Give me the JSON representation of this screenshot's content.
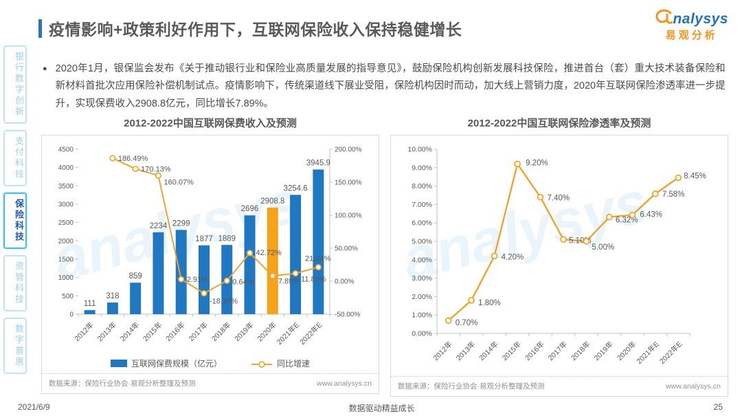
{
  "page": {
    "title": "疫情影响+政策利好作用下，互联网保险收入保持稳健增长",
    "bullet_text": "2020年1月，银保监会发布《关于推动银行业和保险业高质量发展的指导意见》，鼓励保险机构创新发展科技保险，推进首台（套）重大技术装备保险和新材料首批次应用保险补偿机制试点。疫情影响下，传统渠道线下展业受阻，保险机构因时而动，加大线上营销力度，2020年互联网保险渗透率进一步提升，实现保费收入2908.8亿元，同比增长7.89%。",
    "footer": {
      "date": "2021/6/9",
      "slogan": "数据驱动精益成长",
      "page_number": "25"
    }
  },
  "logo": {
    "word": "nalysys",
    "cn": "易观分析",
    "watermark": "analysys"
  },
  "sidebar": {
    "items": [
      {
        "label": "银行数字创新",
        "active": false
      },
      {
        "label": "支付科技",
        "active": false
      },
      {
        "label": "保险科技",
        "active": true
      },
      {
        "label": "资管科技",
        "active": false
      },
      {
        "label": "数字普惠",
        "active": false
      }
    ]
  },
  "colors": {
    "bar_blue": "#1F78C1",
    "highlight_orange": "#F7A21B",
    "line_orange": "#F0A330",
    "accent_blue": "#2E74B5",
    "logo_orange": "#F7941D",
    "logo_blue": "#2372B9"
  },
  "charts": {
    "left": {
      "title": "2012-2022中国互联网保费收入及预测",
      "legend": [
        {
          "label": "互联网保费规模（亿元）",
          "type": "bar"
        },
        {
          "label": "同比增速",
          "type": "line"
        }
      ],
      "source": "数据来源：保险行业协会·易观分析整理及预测",
      "site": "www.analysys.cn"
    },
    "right": {
      "title": "2012-2022中国互联网保险渗透率及预测",
      "source": "数据来源：保险行业协会·易观分析整理及预测",
      "site": "www.analysys.cn"
    }
  },
  "chart_data": [
    {
      "type": "bar",
      "title": "2012-2022中国互联网保费收入及预测",
      "categories": [
        "2012年",
        "2013年",
        "2014年",
        "2015年",
        "2016年",
        "2017年",
        "2018年",
        "2019年",
        "2020年",
        "2021年E",
        "2022年E"
      ],
      "series": [
        {
          "name": "互联网保费规模（亿元）",
          "type": "bar",
          "values": [
            111,
            318,
            859,
            2234,
            2299,
            1877,
            1889,
            2696,
            2908.8,
            3254.6,
            3945.9
          ],
          "labels": [
            "111",
            "318",
            "859",
            "2234",
            "2299",
            "1877",
            "1889",
            "2696",
            "2908.8",
            "3254.6",
            "3945.9"
          ],
          "color": "#1F78C1",
          "highlight_index": 8,
          "highlight_color": "#F7A21B"
        },
        {
          "name": "同比增速",
          "type": "line",
          "values": [
            null,
            186.49,
            170.13,
            160.07,
            2.91,
            -18.36,
            0.64,
            42.72,
            7.89,
            11.89,
            21.24
          ],
          "labels": [
            null,
            "186.49%",
            "170.13%",
            "160.07%",
            "2.91%",
            "-18.36%",
            "0.64%",
            "42.72%",
            "7.89%",
            "11.89%",
            "21.24%"
          ],
          "color": "#F0A330"
        }
      ],
      "y_left": {
        "min": 0,
        "max": 4500,
        "step": 500
      },
      "y_right": {
        "min": -50,
        "max": 200,
        "step": 50,
        "suffix": "%"
      },
      "legend_position": "bottom",
      "grid": false
    },
    {
      "type": "line",
      "title": "2012-2022中国互联网保险渗透率及预测",
      "categories": [
        "2012年",
        "2013年",
        "2014年",
        "2015年",
        "2016年",
        "2017年",
        "2018年",
        "2019年",
        "2020年",
        "2021年E",
        "2022年E"
      ],
      "values": [
        0.7,
        1.8,
        4.2,
        9.2,
        7.4,
        5.1,
        5.0,
        6.32,
        6.43,
        7.58,
        8.45
      ],
      "labels": [
        "0.70%",
        "1.80%",
        "4.20%",
        "9.20%",
        "7.40%",
        "5.10%",
        "5.00%",
        "6.32%",
        "6.43%",
        "7.58%",
        "8.45%"
      ],
      "color": "#F0A330",
      "ylim": [
        0,
        10
      ],
      "ystep": 1,
      "grid": false,
      "legend_position": "none"
    }
  ]
}
